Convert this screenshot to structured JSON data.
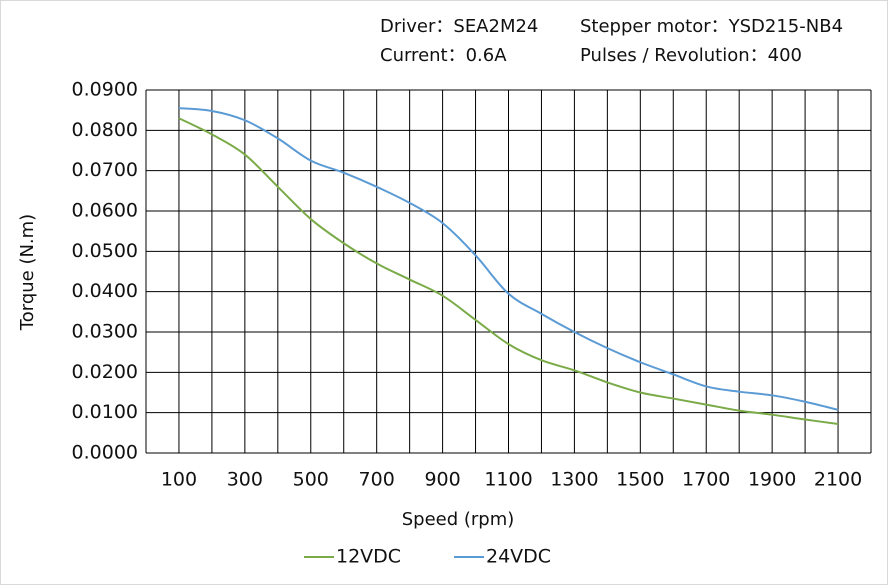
{
  "chart_data": {
    "type": "line",
    "annotations": [
      "Driver：SEA2M24",
      "Stepper motor：YSD215-NB4",
      "Current：0.6A",
      "Pulses / Revolution：400"
    ],
    "x_label": "Speed (rpm)",
    "y_label": "Torque (N.m)",
    "x": [
      100,
      200,
      300,
      400,
      500,
      600,
      700,
      800,
      900,
      1000,
      1100,
      1200,
      1300,
      1400,
      1500,
      1600,
      1700,
      1800,
      1900,
      2000,
      2100
    ],
    "series": [
      {
        "name": "12VDC",
        "color": "#7aab48",
        "values": [
          0.083,
          0.079,
          0.074,
          0.066,
          0.058,
          0.052,
          0.047,
          0.043,
          0.039,
          0.033,
          0.027,
          0.023,
          0.0205,
          0.0175,
          0.015,
          0.0135,
          0.012,
          0.0105,
          0.0095,
          0.0083,
          0.0072
        ]
      },
      {
        "name": "24VDC",
        "color": "#5b9bd5",
        "values": [
          0.0855,
          0.0848,
          0.0825,
          0.078,
          0.0725,
          0.0695,
          0.066,
          0.062,
          0.057,
          0.049,
          0.0395,
          0.0345,
          0.03,
          0.026,
          0.0225,
          0.0195,
          0.0165,
          0.0152,
          0.0143,
          0.0127,
          0.0107
        ]
      }
    ],
    "xlim": [
      0,
      2200
    ],
    "xticks": [
      100,
      300,
      500,
      700,
      900,
      1100,
      1300,
      1500,
      1700,
      1900,
      2100
    ],
    "ylim": [
      0,
      0.09
    ],
    "yticks": [
      {
        "value": 0,
        "label": "0.0000"
      },
      {
        "value": 0.01,
        "label": "0.0100"
      },
      {
        "value": 0.02,
        "label": "0.0200"
      },
      {
        "value": 0.03,
        "label": "0.0300"
      },
      {
        "value": 0.04,
        "label": "0.0400"
      },
      {
        "value": 0.05,
        "label": "0.0500"
      },
      {
        "value": 0.06,
        "label": "0.0600"
      },
      {
        "value": 0.07,
        "label": "0.0700"
      },
      {
        "value": 0.08,
        "label": "0.0800"
      },
      {
        "value": 0.09,
        "label": "0.0900"
      }
    ],
    "grid": true,
    "legend": "bottom"
  }
}
